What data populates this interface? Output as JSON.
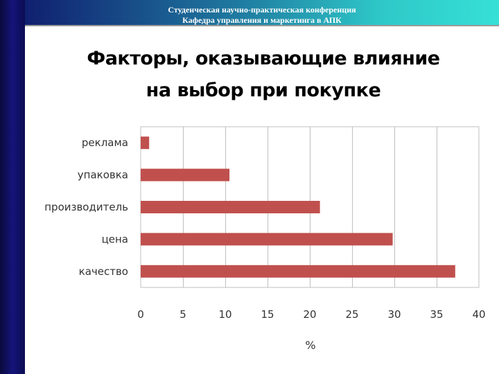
{
  "header": {
    "line1": "Студенческая научно-практическая конференция",
    "line2": "Кафедра управления и маркетинга в АПК"
  },
  "chart_data": {
    "type": "bar",
    "orientation": "horizontal",
    "title_line1": "Факторы, оказывающие влияние",
    "title_line2": "на выбор при покупке",
    "categories": [
      "реклама",
      "упаковка",
      "производитель",
      "цена",
      "качество"
    ],
    "values": [
      1,
      10.5,
      21.2,
      29.8,
      37.2
    ],
    "xlabel": "%",
    "ylabel": "",
    "xlim": [
      0,
      40
    ],
    "xticks": [
      "0",
      "5",
      "10",
      "15",
      "20",
      "25",
      "30",
      "35",
      "40"
    ],
    "grid": true,
    "legend": "none",
    "bar_color": "#c0504d",
    "grid_color": "#bfbfbf"
  }
}
